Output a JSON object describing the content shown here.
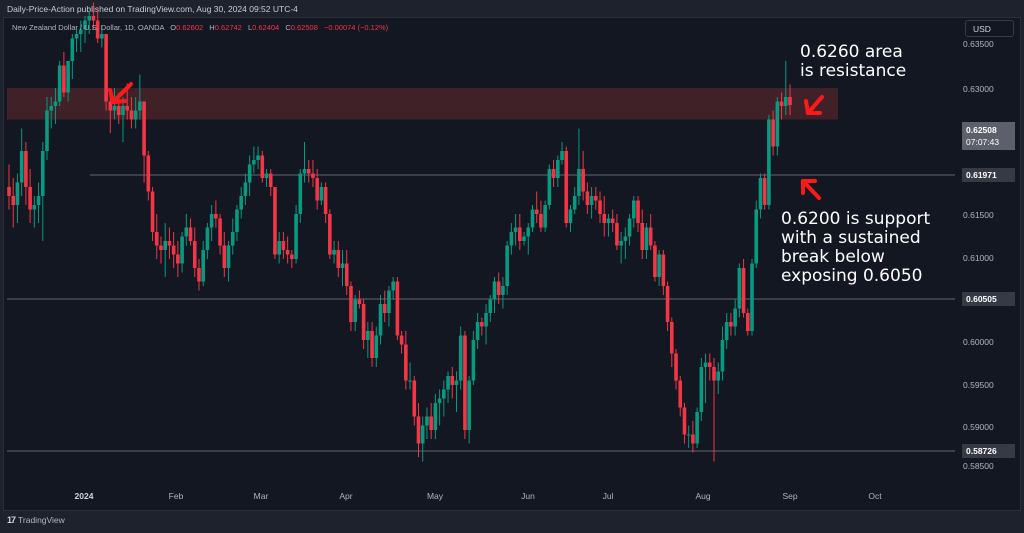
{
  "header": {
    "publisher_line": "Daily-Price-Action published on TradingView.com, Aug 30, 2024 09:52 UTC-4",
    "symbol_description": "New Zealand Dollar / U.S. Dollar, 1D, OANDA",
    "ohlc": {
      "o_label": "O",
      "o_value": "0.62602",
      "h_label": "H",
      "h_value": "0.62742",
      "l_label": "L",
      "l_value": "0.62404",
      "c_label": "C",
      "c_value": "0.62508",
      "change": "−0.00074 (−0.12%)"
    }
  },
  "price_axis": {
    "currency_button": "USD",
    "ticks": [
      "0.63500",
      "0.63000",
      "0.61500",
      "0.61000",
      "0.60000",
      "0.59500",
      "0.59000",
      "0.58500"
    ],
    "tags": {
      "current_price": "0.62508",
      "countdown": "07:07:43",
      "level_1": "0.61971",
      "level_2": "0.60505",
      "level_3": "0.58726"
    }
  },
  "time_axis": {
    "labels": [
      "2024",
      "Feb",
      "Mar",
      "Apr",
      "May",
      "Jun",
      "Jul",
      "Aug",
      "Sep",
      "Oct"
    ]
  },
  "annotations": {
    "resistance_text": "0.6260 area\nis resistance",
    "support_text": "0.6200 is support\nwith a sustained\nbreak below\nexposing 0.6050"
  },
  "footer": {
    "logo_mark": "17",
    "logo_text": "TradingView"
  },
  "colors": {
    "background": "#131722",
    "up": "#089981",
    "down": "#f23645",
    "resistance_zone": "#4a2329",
    "level_line": "#4a4d57",
    "arrow": "#ff1a1a"
  },
  "chart_data": {
    "type": "candlestick",
    "title": "New Zealand Dollar / U.S. Dollar, 1D, OANDA",
    "xlabel": "",
    "ylabel": "USD",
    "ylim": [
      0.5835,
      0.6365
    ],
    "x_ticks": [
      "2024",
      "Feb",
      "Mar",
      "Apr",
      "May",
      "Jun",
      "Jul",
      "Aug",
      "Sep",
      "Oct"
    ],
    "y_ticks": [
      0.585,
      0.59,
      0.595,
      0.6,
      0.605,
      0.61,
      0.615,
      0.62,
      0.625,
      0.63,
      0.635
    ],
    "grid": false,
    "last": {
      "open": 0.62602,
      "high": 0.62742,
      "low": 0.62404,
      "close": 0.62508,
      "change": -0.00074,
      "change_pct": -0.12
    },
    "horizontal_levels": [
      0.61971,
      0.60505,
      0.58726
    ],
    "resistance_zone": [
      0.6235,
      0.627
    ],
    "ohlc": [
      [
        0.616,
        0.6185,
        0.6135,
        0.615
      ],
      [
        0.615,
        0.617,
        0.6115,
        0.614
      ],
      [
        0.614,
        0.6175,
        0.612,
        0.6165
      ],
      [
        0.6165,
        0.6225,
        0.615,
        0.62
      ],
      [
        0.62,
        0.621,
        0.614,
        0.616
      ],
      [
        0.616,
        0.618,
        0.612,
        0.6135
      ],
      [
        0.6135,
        0.615,
        0.6115,
        0.614
      ],
      [
        0.614,
        0.6165,
        0.612,
        0.615
      ],
      [
        0.615,
        0.621,
        0.61,
        0.62
      ],
      [
        0.62,
        0.626,
        0.619,
        0.6245
      ],
      [
        0.6245,
        0.626,
        0.6225,
        0.625
      ],
      [
        0.625,
        0.627,
        0.623,
        0.6255
      ],
      [
        0.6255,
        0.63,
        0.625,
        0.6295
      ],
      [
        0.6295,
        0.631,
        0.626,
        0.6265
      ],
      [
        0.6265,
        0.63,
        0.6255,
        0.63
      ],
      [
        0.63,
        0.633,
        0.628,
        0.6325
      ],
      [
        0.6325,
        0.6335,
        0.631,
        0.633
      ],
      [
        0.633,
        0.6345,
        0.631,
        0.6335
      ],
      [
        0.6335,
        0.635,
        0.632,
        0.6345
      ],
      [
        0.6345,
        0.6355,
        0.633,
        0.635
      ],
      [
        0.635,
        0.6365,
        0.6335,
        0.6345
      ],
      [
        0.6345,
        0.636,
        0.632,
        0.6325
      ],
      [
        0.6325,
        0.634,
        0.6315,
        0.633
      ],
      [
        0.633,
        0.633,
        0.6245,
        0.6255
      ],
      [
        0.6255,
        0.6265,
        0.622,
        0.6245
      ],
      [
        0.6245,
        0.627,
        0.6235,
        0.625
      ],
      [
        0.625,
        0.6265,
        0.623,
        0.624
      ],
      [
        0.624,
        0.626,
        0.621,
        0.625
      ],
      [
        0.625,
        0.6275,
        0.6235,
        0.6245
      ],
      [
        0.6245,
        0.626,
        0.6225,
        0.6235
      ],
      [
        0.6235,
        0.626,
        0.6225,
        0.6245
      ],
      [
        0.6245,
        0.6285,
        0.6235,
        0.6255
      ],
      [
        0.6255,
        0.6255,
        0.6165,
        0.6195
      ],
      [
        0.6195,
        0.62,
        0.6145,
        0.6155
      ],
      [
        0.6155,
        0.616,
        0.61,
        0.611
      ],
      [
        0.611,
        0.613,
        0.608,
        0.6095
      ],
      [
        0.6095,
        0.6105,
        0.6075,
        0.609
      ],
      [
        0.609,
        0.612,
        0.606,
        0.61
      ],
      [
        0.61,
        0.6115,
        0.608,
        0.6095
      ],
      [
        0.6095,
        0.611,
        0.607,
        0.6085
      ],
      [
        0.6085,
        0.61,
        0.606,
        0.6075
      ],
      [
        0.6075,
        0.611,
        0.6065,
        0.6105
      ],
      [
        0.6105,
        0.613,
        0.6095,
        0.6115
      ],
      [
        0.6115,
        0.6125,
        0.6095,
        0.61
      ],
      [
        0.61,
        0.6115,
        0.606,
        0.607
      ],
      [
        0.607,
        0.608,
        0.6045,
        0.6055
      ],
      [
        0.6055,
        0.61,
        0.605,
        0.609
      ],
      [
        0.609,
        0.612,
        0.608,
        0.6115
      ],
      [
        0.6115,
        0.614,
        0.61,
        0.613
      ],
      [
        0.613,
        0.6145,
        0.6115,
        0.6125
      ],
      [
        0.6125,
        0.613,
        0.6085,
        0.6095
      ],
      [
        0.6095,
        0.611,
        0.606,
        0.607
      ],
      [
        0.607,
        0.61,
        0.6055,
        0.6095
      ],
      [
        0.6095,
        0.6125,
        0.6085,
        0.611
      ],
      [
        0.611,
        0.614,
        0.61,
        0.6135
      ],
      [
        0.6135,
        0.616,
        0.6125,
        0.615
      ],
      [
        0.615,
        0.6175,
        0.614,
        0.6165
      ],
      [
        0.6165,
        0.6195,
        0.615,
        0.6185
      ],
      [
        0.6185,
        0.6205,
        0.6175,
        0.619
      ],
      [
        0.619,
        0.6205,
        0.618,
        0.6195
      ],
      [
        0.6195,
        0.62,
        0.6165,
        0.617
      ],
      [
        0.617,
        0.618,
        0.616,
        0.6175
      ],
      [
        0.6175,
        0.618,
        0.615,
        0.616
      ],
      [
        0.616,
        0.616,
        0.608,
        0.6085
      ],
      [
        0.6085,
        0.611,
        0.6075,
        0.61
      ],
      [
        0.61,
        0.611,
        0.608,
        0.609
      ],
      [
        0.609,
        0.6105,
        0.6075,
        0.6085
      ],
      [
        0.6085,
        0.609,
        0.607,
        0.608
      ],
      [
        0.608,
        0.614,
        0.6075,
        0.613
      ],
      [
        0.613,
        0.618,
        0.612,
        0.6175
      ],
      [
        0.6175,
        0.621,
        0.6165,
        0.618
      ],
      [
        0.618,
        0.619,
        0.6165,
        0.6175
      ],
      [
        0.6175,
        0.619,
        0.616,
        0.617
      ],
      [
        0.617,
        0.618,
        0.6135,
        0.6145
      ],
      [
        0.6145,
        0.6165,
        0.614,
        0.616
      ],
      [
        0.616,
        0.6165,
        0.612,
        0.613
      ],
      [
        0.613,
        0.6135,
        0.608,
        0.6085
      ],
      [
        0.6085,
        0.61,
        0.6075,
        0.609
      ],
      [
        0.609,
        0.61,
        0.606,
        0.607
      ],
      [
        0.607,
        0.609,
        0.605,
        0.6075
      ],
      [
        0.6075,
        0.609,
        0.604,
        0.605
      ],
      [
        0.605,
        0.6055,
        0.6,
        0.601
      ],
      [
        0.601,
        0.604,
        0.6,
        0.6035
      ],
      [
        0.6035,
        0.6045,
        0.6025,
        0.603
      ],
      [
        0.603,
        0.6035,
        0.598,
        0.599
      ],
      [
        0.599,
        0.601,
        0.597,
        0.6
      ],
      [
        0.6,
        0.601,
        0.596,
        0.597
      ],
      [
        0.597,
        0.6005,
        0.596,
        0.5995
      ],
      [
        0.5995,
        0.604,
        0.5985,
        0.603
      ],
      [
        0.603,
        0.6045,
        0.601,
        0.602
      ],
      [
        0.602,
        0.605,
        0.6005,
        0.6045
      ],
      [
        0.6045,
        0.606,
        0.6035,
        0.6055
      ],
      [
        0.6055,
        0.606,
        0.599,
        0.5995
      ],
      [
        0.5995,
        0.6,
        0.5975,
        0.5985
      ],
      [
        0.5985,
        0.6,
        0.5935,
        0.5945
      ],
      [
        0.5945,
        0.5965,
        0.5935,
        0.5945
      ],
      [
        0.5945,
        0.595,
        0.5895,
        0.5905
      ],
      [
        0.5905,
        0.592,
        0.586,
        0.5875
      ],
      [
        0.5875,
        0.5905,
        0.5855,
        0.5895
      ],
      [
        0.5895,
        0.5915,
        0.588,
        0.5905
      ],
      [
        0.5905,
        0.592,
        0.588,
        0.589
      ],
      [
        0.589,
        0.593,
        0.588,
        0.592
      ],
      [
        0.592,
        0.5935,
        0.5895,
        0.5925
      ],
      [
        0.5925,
        0.5945,
        0.5905,
        0.5935
      ],
      [
        0.5935,
        0.5955,
        0.592,
        0.595
      ],
      [
        0.595,
        0.596,
        0.5925,
        0.594
      ],
      [
        0.594,
        0.5955,
        0.591,
        0.5945
      ],
      [
        0.5945,
        0.6005,
        0.5935,
        0.5995
      ],
      [
        0.5995,
        0.6,
        0.588,
        0.589
      ],
      [
        0.589,
        0.595,
        0.5875,
        0.5945
      ],
      [
        0.5945,
        0.6,
        0.594,
        0.599
      ],
      [
        0.599,
        0.602,
        0.598,
        0.601
      ],
      [
        0.601,
        0.6015,
        0.5995,
        0.6005
      ],
      [
        0.6005,
        0.603,
        0.5985,
        0.602
      ],
      [
        0.602,
        0.604,
        0.601,
        0.6035
      ],
      [
        0.6035,
        0.606,
        0.602,
        0.6055
      ],
      [
        0.6055,
        0.6065,
        0.603,
        0.604
      ],
      [
        0.604,
        0.606,
        0.6025,
        0.605
      ],
      [
        0.605,
        0.61,
        0.604,
        0.6095
      ],
      [
        0.6095,
        0.612,
        0.6085,
        0.611
      ],
      [
        0.611,
        0.613,
        0.6095,
        0.6115
      ],
      [
        0.6115,
        0.613,
        0.609,
        0.61
      ],
      [
        0.61,
        0.611,
        0.6095,
        0.6105
      ],
      [
        0.6105,
        0.612,
        0.6085,
        0.6115
      ],
      [
        0.6115,
        0.614,
        0.611,
        0.6135
      ],
      [
        0.6135,
        0.6155,
        0.612,
        0.613
      ],
      [
        0.613,
        0.6145,
        0.611,
        0.6115
      ],
      [
        0.6115,
        0.6145,
        0.611,
        0.614
      ],
      [
        0.614,
        0.6185,
        0.6135,
        0.618
      ],
      [
        0.618,
        0.619,
        0.616,
        0.617
      ],
      [
        0.617,
        0.6195,
        0.616,
        0.619
      ],
      [
        0.619,
        0.621,
        0.6185,
        0.62
      ],
      [
        0.62,
        0.6205,
        0.6115,
        0.612
      ],
      [
        0.612,
        0.614,
        0.611,
        0.6135
      ],
      [
        0.6135,
        0.616,
        0.613,
        0.615
      ],
      [
        0.615,
        0.6225,
        0.614,
        0.618
      ],
      [
        0.618,
        0.62,
        0.6145,
        0.6155
      ],
      [
        0.6155,
        0.6165,
        0.613,
        0.614
      ],
      [
        0.614,
        0.616,
        0.6125,
        0.615
      ],
      [
        0.615,
        0.616,
        0.6135,
        0.6145
      ],
      [
        0.6145,
        0.6155,
        0.612,
        0.613
      ],
      [
        0.613,
        0.615,
        0.6105,
        0.612
      ],
      [
        0.612,
        0.613,
        0.6105,
        0.6125
      ],
      [
        0.6125,
        0.6135,
        0.611,
        0.612
      ],
      [
        0.612,
        0.613,
        0.609,
        0.6095
      ],
      [
        0.6095,
        0.611,
        0.6075,
        0.61
      ],
      [
        0.61,
        0.6115,
        0.608,
        0.6105
      ],
      [
        0.6105,
        0.613,
        0.6095,
        0.6125
      ],
      [
        0.6125,
        0.615,
        0.6115,
        0.6145
      ],
      [
        0.6145,
        0.615,
        0.611,
        0.612
      ],
      [
        0.612,
        0.6135,
        0.608,
        0.609
      ],
      [
        0.609,
        0.612,
        0.608,
        0.6115
      ],
      [
        0.6115,
        0.613,
        0.609,
        0.6095
      ],
      [
        0.6095,
        0.61,
        0.6055,
        0.606
      ],
      [
        0.606,
        0.609,
        0.605,
        0.6085
      ],
      [
        0.6085,
        0.609,
        0.604,
        0.605
      ],
      [
        0.605,
        0.6055,
        0.6,
        0.601
      ],
      [
        0.601,
        0.6015,
        0.596,
        0.5975
      ],
      [
        0.5975,
        0.598,
        0.5935,
        0.5945
      ],
      [
        0.5945,
        0.595,
        0.5905,
        0.5915
      ],
      [
        0.5915,
        0.592,
        0.5875,
        0.5885
      ],
      [
        0.5885,
        0.5895,
        0.587,
        0.5885
      ],
      [
        0.5885,
        0.59,
        0.5865,
        0.5875
      ],
      [
        0.5875,
        0.5915,
        0.587,
        0.591
      ],
      [
        0.591,
        0.597,
        0.59,
        0.596
      ],
      [
        0.596,
        0.5975,
        0.592,
        0.5965
      ],
      [
        0.5965,
        0.5975,
        0.5945,
        0.596
      ],
      [
        0.596,
        0.597,
        0.5855,
        0.5945
      ],
      [
        0.5945,
        0.5965,
        0.593,
        0.5955
      ],
      [
        0.5955,
        0.6005,
        0.5945,
        0.599
      ],
      [
        0.599,
        0.602,
        0.598,
        0.601
      ],
      [
        0.601,
        0.602,
        0.5995,
        0.6005
      ],
      [
        0.6005,
        0.6035,
        0.5995,
        0.6025
      ],
      [
        0.6025,
        0.6075,
        0.6015,
        0.607
      ],
      [
        0.607,
        0.608,
        0.6015,
        0.602
      ],
      [
        0.602,
        0.6025,
        0.5995,
        0.6
      ],
      [
        0.6,
        0.608,
        0.5995,
        0.6075
      ],
      [
        0.6075,
        0.6145,
        0.607,
        0.6135
      ],
      [
        0.6135,
        0.6175,
        0.6125,
        0.617
      ],
      [
        0.617,
        0.6175,
        0.6135,
        0.614
      ],
      [
        0.614,
        0.624,
        0.6135,
        0.6235
      ],
      [
        0.6235,
        0.6245,
        0.6195,
        0.6205
      ],
      [
        0.6205,
        0.626,
        0.6195,
        0.6255
      ],
      [
        0.6255,
        0.6265,
        0.6235,
        0.625
      ],
      [
        0.625,
        0.63,
        0.624,
        0.626
      ],
      [
        0.626,
        0.6274,
        0.624,
        0.6251
      ]
    ]
  }
}
